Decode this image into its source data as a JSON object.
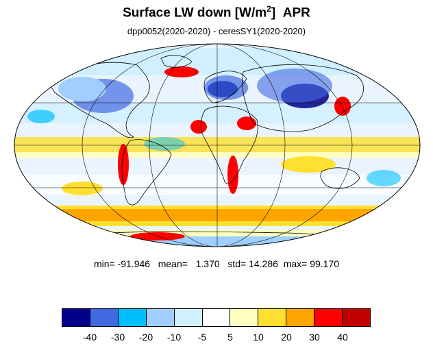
{
  "title": {
    "main": "Surface LW down [W/m",
    "sup": "2",
    "close": "]",
    "month": "APR"
  },
  "subtitle": "dpp0052(2020-2020) - ceresSY1(2020-2020)",
  "stats": {
    "min_label": "min=",
    "min": "-91.946",
    "mean_label": "mean=",
    "mean": "1.370",
    "std_label": "std=",
    "std": "14.286",
    "max_label": "max=",
    "max": "99.170"
  },
  "colorbar": {
    "colors": [
      "#00008b",
      "#4169e1",
      "#00bfff",
      "#a0cfff",
      "#d0efff",
      "#ffffff",
      "#ffffc0",
      "#ffdf30",
      "#ffa500",
      "#ff0000",
      "#c00000"
    ],
    "labels": [
      "-40",
      "-30",
      "-20",
      "-10",
      "-5",
      "5",
      "10",
      "20",
      "30",
      "40"
    ]
  },
  "map": {
    "projection": "Mollweide",
    "colors": {
      "ocean_bg": "#eaf4ff",
      "strong_pos": "#ff0000",
      "pos": "#ffa500",
      "weak_pos": "#ffdf30",
      "neg": "#4169e1",
      "weak_neg": "#a0cfff",
      "strong_neg": "#00008b"
    }
  }
}
